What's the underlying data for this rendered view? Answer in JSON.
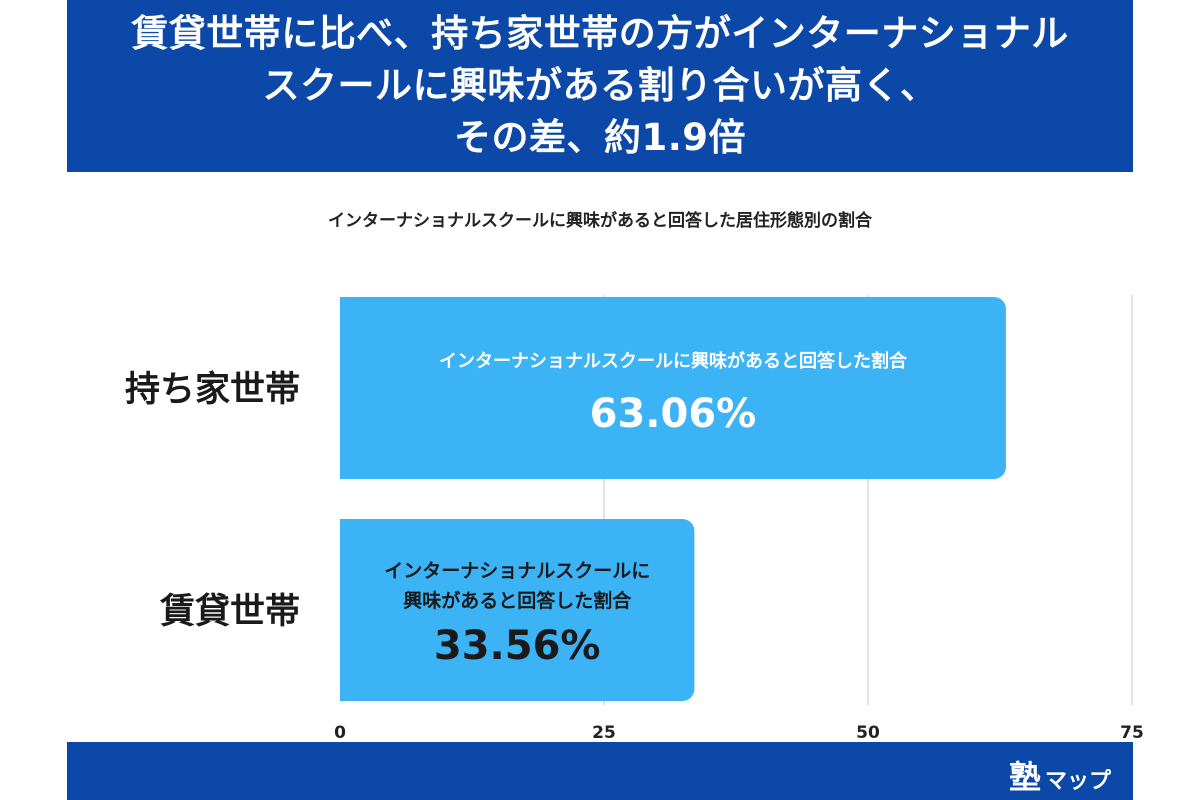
{
  "header": {
    "headline_lines": [
      "賃貸世帯に比べ、持ち家世帯の方がインターナショナル",
      "スクールに興味がある割り合いが高く、",
      "その差、約1.9倍"
    ]
  },
  "chart_data": {
    "type": "bar",
    "orientation": "horizontal",
    "title": "インターナショナルスクールに興味があると回答した居住形態別の割合",
    "categories": [
      "持ち家世帯",
      "賃貸世帯"
    ],
    "values": [
      63.06,
      33.56
    ],
    "value_labels": [
      "63.06%",
      "33.56%"
    ],
    "bar_captions": [
      [
        "インターナショナルスクールに興味があると回答した割合"
      ],
      [
        "インターナショナルスクールに",
        "興味があると回答した割合"
      ]
    ],
    "xlim": [
      0,
      75
    ],
    "xticks": [
      0,
      25,
      50,
      75
    ],
    "xlabel": "",
    "ylabel": "",
    "grid": "vertical",
    "bar_color": "#3bb3f5"
  },
  "footer": {
    "logo_kanji": "塾",
    "logo_kana": "マップ"
  },
  "colors": {
    "brand": "#0b48a8",
    "bar": "#3bb3f5",
    "grid": "#d9d9d9"
  }
}
